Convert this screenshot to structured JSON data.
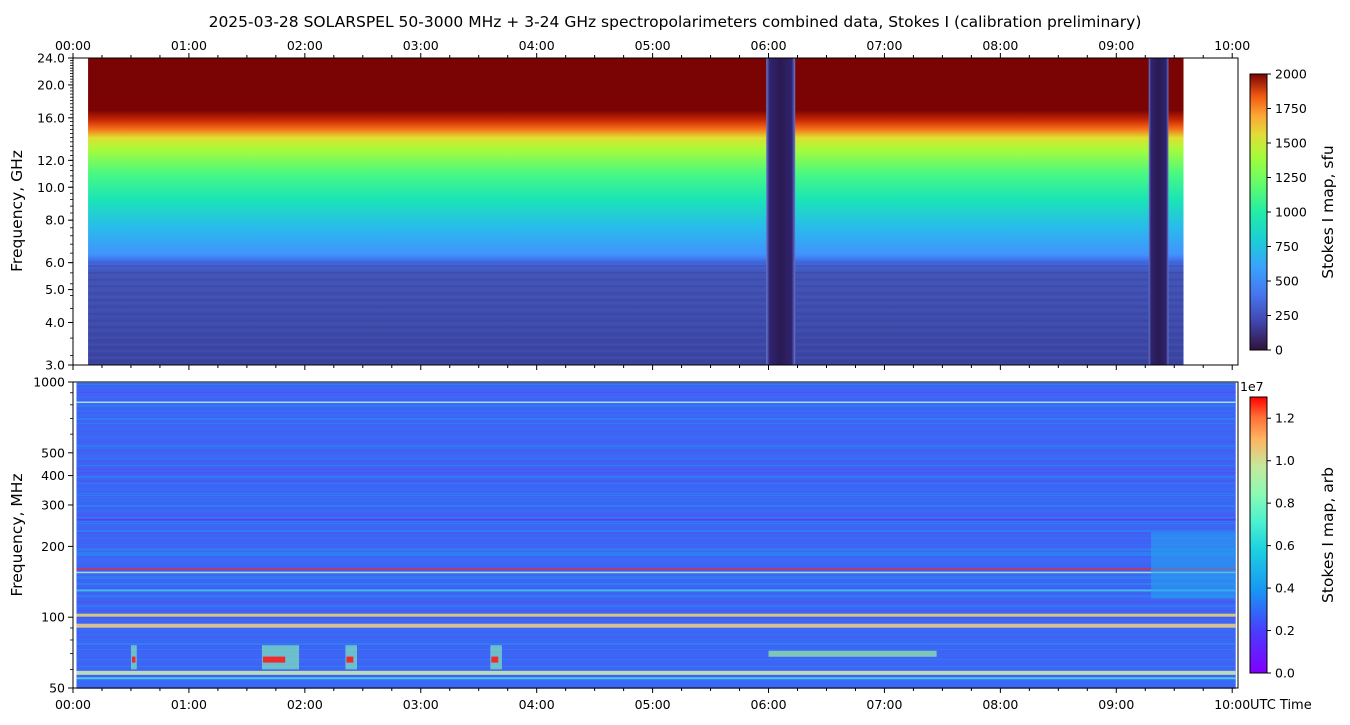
{
  "title": "2025-03-28  SOLARSPEL  50-3000 MHz  +  3-24 GHz  spectropolarimeters combined data,  Stokes I  (calibration preliminary)",
  "xlabel": "UTC Time",
  "chart_data": [
    {
      "type": "heatmap",
      "name": "upper",
      "ylabel": "Frequency, GHz",
      "x_ticks": [
        "00:00",
        "01:00",
        "02:00",
        "03:00",
        "04:00",
        "05:00",
        "06:00",
        "07:00",
        "08:00",
        "09:00",
        "10:00"
      ],
      "xlim_hours": [
        0,
        10.05
      ],
      "ylim": [
        3.0,
        24.0
      ],
      "y_ticks": [
        "3.0",
        "4.0",
        "5.0",
        "6.0",
        "8.0",
        "10.0",
        "12.0",
        "16.0",
        "20.0",
        "24.0"
      ],
      "data_span_hours": [
        0.13,
        9.58
      ],
      "gaps_hours": [
        [
          5.98,
          6.23
        ],
        [
          9.28,
          9.45
        ]
      ],
      "colorbar": {
        "label": "Stokes I map, sfu",
        "range": [
          0,
          2000
        ],
        "ticks": [
          "0",
          "250",
          "500",
          "750",
          "1000",
          "1250",
          "1500",
          "1750",
          "2000"
        ],
        "colormap": "turbo"
      }
    },
    {
      "type": "heatmap",
      "name": "lower",
      "ylabel": "Frequency, MHz",
      "x_ticks": [
        "00:00",
        "01:00",
        "02:00",
        "03:00",
        "04:00",
        "05:00",
        "06:00",
        "07:00",
        "08:00",
        "09:00",
        "10:00"
      ],
      "xlim_hours": [
        0,
        10.05
      ],
      "ylim": [
        50,
        1000
      ],
      "y_scale": "log",
      "y_ticks": [
        "50",
        "100",
        "200",
        "300",
        "400",
        "500",
        "1000"
      ],
      "data_span_hours": [
        0.03,
        10.03
      ],
      "colorbar": {
        "label": "Stokes I map, arb",
        "range": [
          0,
          1.3
        ],
        "multiplier": "1e7",
        "ticks": [
          "0.0",
          "0.2",
          "0.4",
          "0.6",
          "0.8",
          "1.0",
          "1.2"
        ],
        "colormap": "rainbow"
      }
    }
  ]
}
